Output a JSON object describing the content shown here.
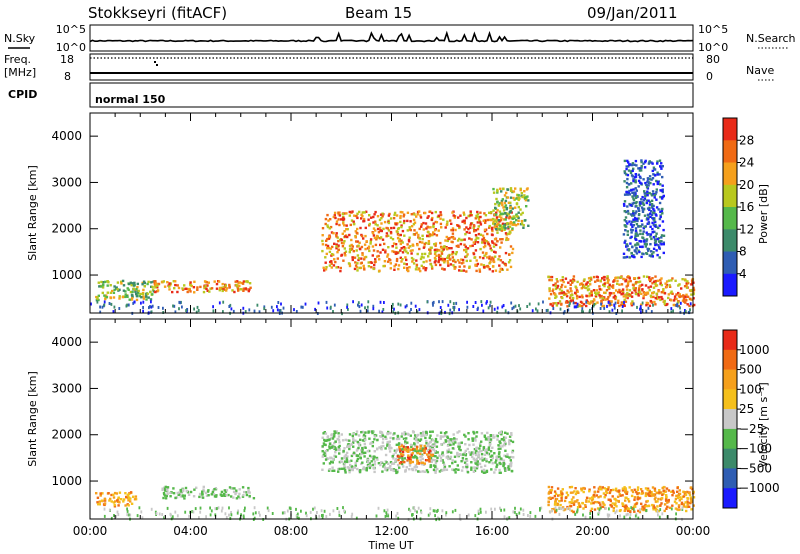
{
  "header": {
    "station": "Stokkseyri (fitACF)",
    "beam": "Beam 15",
    "date": "09/Jan/2011"
  },
  "strips": {
    "nsky_label": "N.Sky",
    "nsky_ticks": [
      "10^5",
      "10^0"
    ],
    "nsearch_label": "N.Search",
    "nsearch_ticks": [
      "10^5",
      "10^0"
    ],
    "freq_label": "Freq.",
    "freq_unit": "[MHz]",
    "freq_ticks": [
      "18",
      "8"
    ],
    "nave_label": "Nave",
    "nave_ticks": [
      "80",
      "0"
    ],
    "cpid_label": "CPID",
    "cpid_value": "normal 150"
  },
  "chart_data": [
    {
      "type": "heatmap",
      "panel": "power",
      "ylabel": "Slant Range [km]",
      "ylim": [
        180,
        4500
      ],
      "yticks": [
        "1000",
        "2000",
        "3000",
        "4000"
      ],
      "xlabel": "Time UT",
      "xlim": [
        0,
        24
      ],
      "xticks": [
        "00:00",
        "04:00",
        "08:00",
        "12:00",
        "16:00",
        "20:00",
        "00:00"
      ],
      "colorbar": {
        "label": "Power [dB]",
        "ticks": [
          "4",
          "8",
          "12",
          "16",
          "20",
          "24",
          "28"
        ],
        "range": [
          0,
          32
        ],
        "colors": [
          "#1a1aff",
          "#2f5db3",
          "#3c8a6a",
          "#55b84a",
          "#b8c81e",
          "#f5a01c",
          "#f06a14",
          "#e82a18"
        ]
      },
      "echo_regions": [
        {
          "t": [
            0.2,
            2.5
          ],
          "range": [
            480,
            900
          ],
          "level": "medium"
        },
        {
          "t": [
            2.5,
            6.4
          ],
          "range": [
            650,
            900
          ],
          "level": "high"
        },
        {
          "t": [
            9.2,
            16.8
          ],
          "range": [
            1100,
            2400
          ],
          "level": "high"
        },
        {
          "t": [
            16.0,
            17.4
          ],
          "range": [
            2000,
            2900
          ],
          "level": "medium"
        },
        {
          "t": [
            18.2,
            24.0
          ],
          "range": [
            350,
            1000
          ],
          "level": "high"
        },
        {
          "t": [
            21.2,
            22.8
          ],
          "range": [
            1400,
            3500
          ],
          "level": "low"
        }
      ]
    },
    {
      "type": "heatmap",
      "panel": "velocity",
      "ylabel": "Slant Range [km]",
      "ylim": [
        180,
        4500
      ],
      "yticks": [
        "1000",
        "2000",
        "3000",
        "4000"
      ],
      "xlabel": "Time UT",
      "xlim": [
        0,
        24
      ],
      "xticks": [
        "00:00",
        "04:00",
        "08:00",
        "12:00",
        "16:00",
        "20:00",
        "00:00"
      ],
      "colorbar": {
        "label": "Velocity [m s⁻¹]",
        "ticks": [
          "1000",
          "500",
          "100",
          "25",
          "−25",
          "−100",
          "−500",
          "−1000"
        ],
        "colors": [
          "#1a1aff",
          "#2f5db3",
          "#3c8a6a",
          "#55b84a",
          "#c8c8c8",
          "#f5c01c",
          "#f5a01c",
          "#f06a14",
          "#e82a18"
        ]
      },
      "echo_regions": [
        {
          "t": [
            0.2,
            1.8
          ],
          "range": [
            480,
            800
          ],
          "velocity": "negative"
        },
        {
          "t": [
            2.8,
            6.6
          ],
          "range": [
            650,
            900
          ],
          "velocity": "near-zero"
        },
        {
          "t": [
            9.2,
            16.8
          ],
          "range": [
            1200,
            2100
          ],
          "velocity": "near-zero"
        },
        {
          "t": [
            12.2,
            13.6
          ],
          "range": [
            1400,
            1800
          ],
          "velocity": "strong-negative"
        },
        {
          "t": [
            18.2,
            24.0
          ],
          "range": [
            350,
            900
          ],
          "velocity": "negative"
        }
      ]
    }
  ]
}
